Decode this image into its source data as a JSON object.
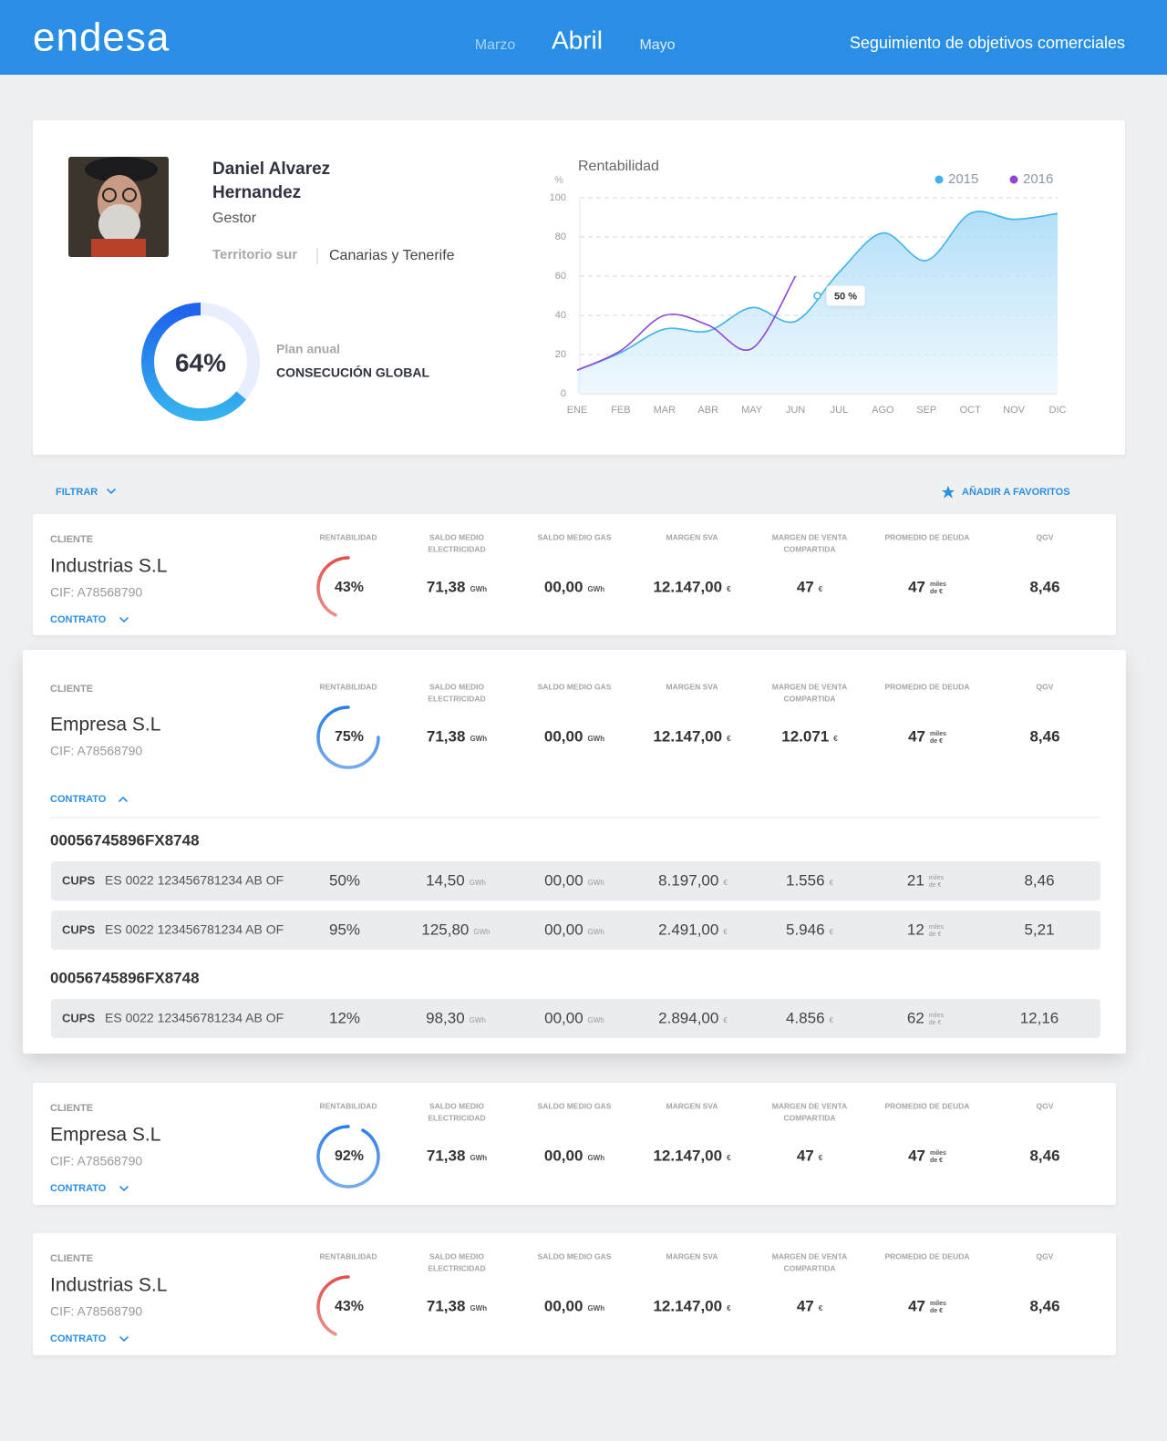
{
  "header": {
    "logo": "endesa",
    "months": [
      "Marzo",
      "Abril",
      "Mayo"
    ],
    "title": "Seguimiento de objetivos comerciales"
  },
  "profile": {
    "name": [
      "Daniel Alvarez",
      "Hernandez"
    ],
    "role": "Gestor",
    "territory": "Territorio sur",
    "region": "Canarias y Tenerife",
    "progress": {
      "value": 64,
      "label": "64%"
    },
    "plan": "Plan anual",
    "goal": "CONSECUCIÓN GLOBAL"
  },
  "chart_data": {
    "type": "line",
    "title": "Rentabilidad",
    "y_label": "%",
    "categories": [
      "ENE",
      "FEB",
      "MAR",
      "ABR",
      "MAY",
      "JUN",
      "JUL",
      "AGO",
      "SEP",
      "OCT",
      "NOV",
      "DIC"
    ],
    "series": [
      {
        "name": "2015",
        "color": "#3fb3ea",
        "values": [
          12,
          21,
          33,
          32,
          44,
          37,
          62,
          82,
          68,
          92,
          89,
          92
        ]
      },
      {
        "name": "2016",
        "color": "#8e44d6",
        "values": [
          12,
          22,
          40,
          35,
          23,
          60,
          null,
          null,
          null,
          null,
          null,
          null
        ]
      }
    ],
    "ylim": [
      0,
      100
    ],
    "yticks": [
      0,
      20,
      40,
      60,
      80,
      100
    ],
    "grid": true,
    "legend": "top-right",
    "annotation": {
      "text": "50 %",
      "value": 50
    }
  },
  "toolbar": {
    "filter": "FILTRAR",
    "favorites": "AÑADIR  A FAVORITOS"
  },
  "table": {
    "client_label": "CLIENTE",
    "contract_label": "CONTRATO",
    "cups_label": "CUPS",
    "columns": [
      [
        "RENTABILIDAD"
      ],
      [
        "SALDO MEDIO",
        "ELECTRICIDAD"
      ],
      [
        "SALDO MEDIO GAS"
      ],
      [
        "MARGEN SVA"
      ],
      [
        "MARGEN DE VENTA",
        "COMPARTIDA"
      ],
      [
        "PROMEDIO DE DEUDA"
      ],
      [
        "QGV"
      ]
    ],
    "units": [
      "GWh",
      "GWh",
      "€",
      "€",
      [
        "miles",
        "de €"
      ]
    ],
    "clients": [
      {
        "name": "Industrias S.L",
        "cif": "CIF: A78568790",
        "rentabilidad": {
          "value": 43,
          "label": "43%"
        },
        "color": "#e2504a",
        "values": [
          "71,38",
          "00,00",
          "12.147,00",
          "47",
          "47",
          "8,46"
        ]
      },
      {
        "name": "Empresa S.L",
        "cif": "CIF: A78568790",
        "rentabilidad": {
          "value": 75,
          "label": "75%"
        },
        "color": "#2a7de8",
        "values": [
          "71,38",
          "00,00",
          "12.147,00",
          "12.071",
          "47",
          "8,46"
        ],
        "contracts": [
          {
            "id": "00056745896FX8748",
            "cups": [
              {
                "code": "ES 0022 123456781234 AB OF",
                "values": [
                  "50%",
                  "14,50",
                  "00,00",
                  "8.197,00",
                  "1.556",
                  "21",
                  "8,46"
                ]
              },
              {
                "code": "ES 0022 123456781234 AB OF",
                "values": [
                  "95%",
                  "125,80",
                  "00,00",
                  "2.491,00",
                  "5.946",
                  "12",
                  "5,21"
                ]
              }
            ]
          },
          {
            "id": "00056745896FX8748",
            "cups": [
              {
                "code": "ES 0022 123456781234 AB OF",
                "values": [
                  "12%",
                  "98,30",
                  "00,00",
                  "2.894,00",
                  "4.856",
                  "62",
                  "12,16"
                ]
              }
            ]
          }
        ]
      },
      {
        "name": "Empresa S.L",
        "cif": "CIF: A78568790",
        "rentabilidad": {
          "value": 92,
          "label": "92%"
        },
        "color": "#2a7de8",
        "values": [
          "71,38",
          "00,00",
          "12.147,00",
          "47",
          "47",
          "8,46"
        ]
      },
      {
        "name": "Industrias S.L",
        "cif": "CIF: A78568790",
        "rentabilidad": {
          "value": 43,
          "label": "43%"
        },
        "color": "#e2504a",
        "values": [
          "71,38",
          "00,00",
          "12.147,00",
          "47",
          "47",
          "8,46"
        ]
      }
    ]
  }
}
